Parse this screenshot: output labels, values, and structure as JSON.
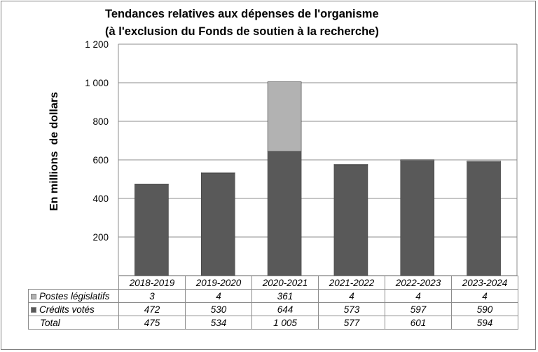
{
  "chart_data": {
    "type": "bar",
    "stacked": true,
    "title_lines": [
      "Tendances relatives aux dépenses de l'organisme",
      "(à l'exclusion du Fonds de soutien à la recherche)"
    ],
    "ylabel": "En millions  de dollars",
    "ylim": [
      0,
      1200
    ],
    "yticks": [
      200,
      400,
      600,
      800,
      1000,
      1200
    ],
    "ytick_labels": [
      "200",
      "400",
      "600",
      "800",
      "1 000",
      "1 200"
    ],
    "grid": true,
    "categories": [
      "2018-2019",
      "2019-2020",
      "2020-2021",
      "2021-2022",
      "2022-2023",
      "2023-2024"
    ],
    "series": [
      {
        "name": "Crédits votés",
        "color": "#595959",
        "values": [
          472,
          530,
          644,
          573,
          597,
          590
        ],
        "labels": [
          "472",
          "530",
          "644",
          "573",
          "597",
          "590"
        ]
      },
      {
        "name": "Postes législatifs",
        "color": "#b2b2b2",
        "values": [
          3,
          4,
          361,
          4,
          4,
          4
        ],
        "labels": [
          "3",
          "4",
          "361",
          "4",
          "4",
          "4"
        ]
      }
    ],
    "totals": {
      "name": "Total",
      "values": [
        475,
        534,
        1005,
        577,
        601,
        594
      ],
      "labels": [
        "475",
        "534",
        "1 005",
        "577",
        "601",
        "594"
      ]
    }
  }
}
